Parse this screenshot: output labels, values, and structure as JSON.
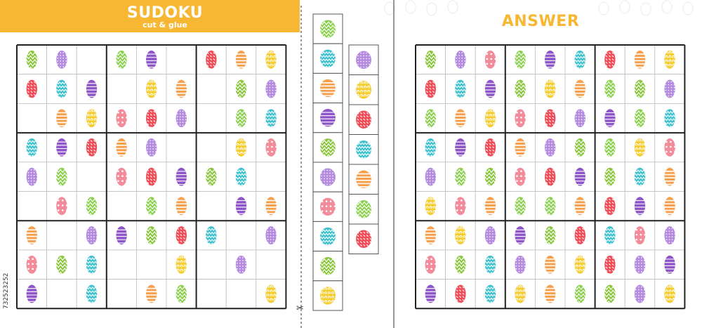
{
  "banner": {
    "title": "SUDOKU",
    "subtitle": "cut & glue"
  },
  "answer": {
    "title": "ANSWER"
  },
  "stock_id": "732523252",
  "cut_icon": "scissors-icon",
  "colors": {
    "banner": "#f7b733",
    "answer_title": "#f7b733",
    "grid_line": "#222222",
    "cell_line": "#bdbdbd",
    "green": "#8cc63f",
    "violet": "#b58be0",
    "red": "#ef4d58",
    "pink": "#f28b9a",
    "orange": "#f6a04d",
    "yellow": "#f5cc2c",
    "purple": "#8e55c8",
    "teal": "#3ec1cf",
    "lime": "#8bd04f"
  },
  "egg_types": [
    {
      "id": 1,
      "name": "green-zigzag-egg",
      "color": "#8cc63f",
      "pattern": "zigzag"
    },
    {
      "id": 2,
      "name": "violet-dotted-egg",
      "color": "#b58be0",
      "pattern": "dots"
    },
    {
      "id": 3,
      "name": "red-dashed-egg",
      "color": "#ef4d58",
      "pattern": "dashes"
    },
    {
      "id": 4,
      "name": "pink-flower-egg",
      "color": "#f28b9a",
      "pattern": "flowers"
    },
    {
      "id": 5,
      "name": "orange-banded-egg",
      "color": "#f6a04d",
      "pattern": "bands"
    },
    {
      "id": 6,
      "name": "yellow-swirl-egg",
      "color": "#f5cc2c",
      "pattern": "swirls"
    },
    {
      "id": 7,
      "name": "purple-striped-egg",
      "color": "#8e55c8",
      "pattern": "stripes"
    },
    {
      "id": 8,
      "name": "teal-wave-egg",
      "color": "#3ec1cf",
      "pattern": "waves"
    },
    {
      "id": 9,
      "name": "lime-scale-egg",
      "color": "#8bd04f",
      "pattern": "scales"
    }
  ],
  "puzzle": [
    [
      1,
      2,
      0,
      9,
      7,
      0,
      3,
      5,
      6
    ],
    [
      3,
      8,
      7,
      0,
      6,
      5,
      0,
      1,
      2
    ],
    [
      0,
      5,
      6,
      4,
      3,
      2,
      0,
      9,
      8
    ],
    [
      8,
      7,
      3,
      5,
      2,
      0,
      0,
      6,
      4
    ],
    [
      2,
      9,
      0,
      4,
      3,
      7,
      1,
      8,
      0
    ],
    [
      0,
      4,
      9,
      0,
      9,
      5,
      0,
      7,
      5
    ],
    [
      5,
      0,
      2,
      7,
      1,
      3,
      8,
      0,
      2
    ],
    [
      4,
      1,
      8,
      0,
      0,
      6,
      0,
      2,
      0
    ],
    [
      7,
      0,
      8,
      0,
      5,
      9,
      0,
      0,
      6
    ]
  ],
  "solution": [
    [
      1,
      2,
      4,
      9,
      7,
      8,
      3,
      5,
      6
    ],
    [
      3,
      8,
      7,
      1,
      6,
      5,
      9,
      1,
      2
    ],
    [
      9,
      5,
      6,
      4,
      3,
      2,
      7,
      9,
      8
    ],
    [
      8,
      7,
      3,
      5,
      2,
      1,
      9,
      6,
      4
    ],
    [
      2,
      9,
      1,
      4,
      3,
      7,
      1,
      8,
      5
    ],
    [
      6,
      4,
      5,
      9,
      9,
      5,
      3,
      7,
      5
    ],
    [
      5,
      6,
      2,
      7,
      1,
      3,
      8,
      4,
      2
    ],
    [
      4,
      1,
      8,
      2,
      5,
      6,
      3,
      2,
      7
    ],
    [
      7,
      3,
      8,
      6,
      5,
      9,
      1,
      2,
      6
    ]
  ],
  "cut_strip_a": [
    9,
    8,
    5,
    7,
    1,
    2,
    4,
    8,
    1,
    6
  ],
  "cut_strip_b": [
    2,
    6,
    3,
    8,
    5,
    9,
    3
  ]
}
